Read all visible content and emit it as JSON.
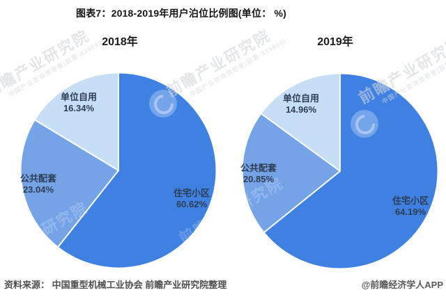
{
  "figure_title": "图表7：2018-2019年用户泊位比例图(单位： %)",
  "source": {
    "left": "资料来源： 中国重型机械工业协会 前瞻产业研究院整理",
    "right": "@前瞻经济学人APP"
  },
  "watermark": {
    "text": "前瞻产业研究院",
    "subtext": "中国产业咨询领导者(股票:839599)"
  },
  "palette": {
    "slice_dark_blue": "#3f81e2",
    "slice_medium_blue": "#74a3e8",
    "slice_light_blue": "#c6def6",
    "label_text": "#2e3d52"
  },
  "chart_data": [
    {
      "type": "pie",
      "title": "2018年",
      "unit": "%",
      "labels": [
        "住宅小区",
        "公共配套",
        "单位自用"
      ],
      "values": [
        60.62,
        23.04,
        16.34
      ],
      "values_display": [
        "60.62%",
        "23.04%",
        "16.34%"
      ],
      "colors": [
        "#3f81e2",
        "#74a3e8",
        "#c6def6"
      ],
      "slice_ids": [
        "residential",
        "public",
        "unit"
      ],
      "start_angle": 0,
      "direction": "clockwise",
      "legend": "none",
      "labels_position": "inside"
    },
    {
      "type": "pie",
      "title": "2019年",
      "unit": "%",
      "labels": [
        "住宅小区",
        "公共配套",
        "单位自用"
      ],
      "values": [
        64.19,
        20.85,
        14.96
      ],
      "values_display": [
        "64.19%",
        "20.85%",
        "14.96%"
      ],
      "colors": [
        "#3f81e2",
        "#74a3e8",
        "#c6def6"
      ],
      "slice_ids": [
        "residential",
        "public",
        "unit"
      ],
      "start_angle": 0,
      "direction": "clockwise",
      "legend": "none",
      "labels_position": "inside"
    }
  ]
}
